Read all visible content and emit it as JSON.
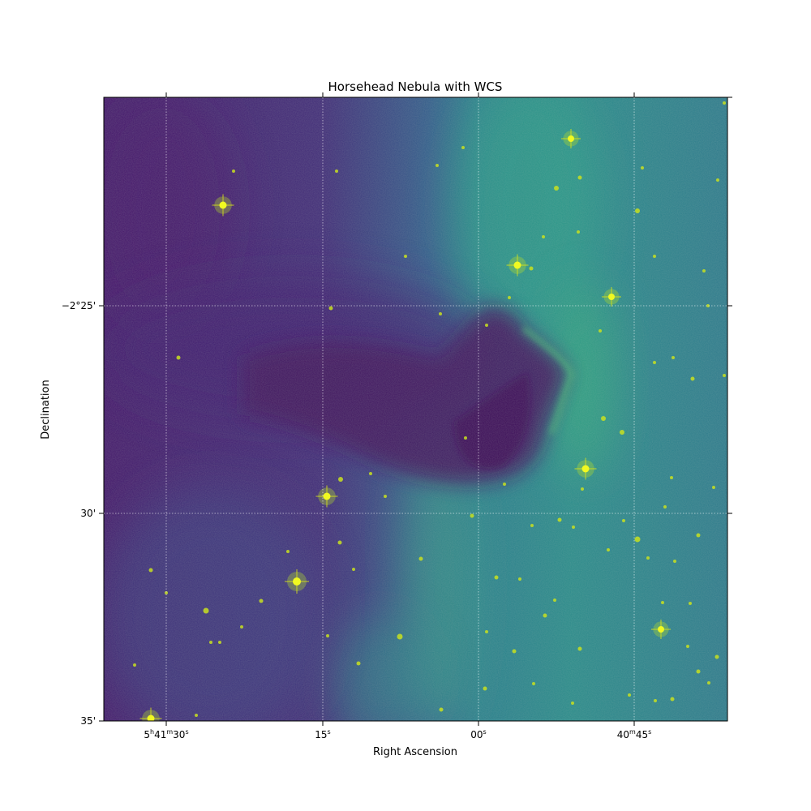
{
  "figure": {
    "title": "Horsehead Nebula with WCS",
    "xlabel": "Right Ascension",
    "ylabel": "Declination",
    "colormap": "viridis",
    "grid": "on",
    "grid_color": "#ffffff"
  },
  "ra_ticks": [
    {
      "hms": "5h41m30s",
      "h": "5",
      "m": "41",
      "s": "30"
    },
    {
      "s": "15"
    },
    {
      "s": "00"
    },
    {
      "m": "40",
      "s": "45"
    }
  ],
  "dec_ticks": [
    {
      "label": "−2°25'"
    },
    {
      "label": "30'"
    },
    {
      "label": "35'"
    }
  ]
}
